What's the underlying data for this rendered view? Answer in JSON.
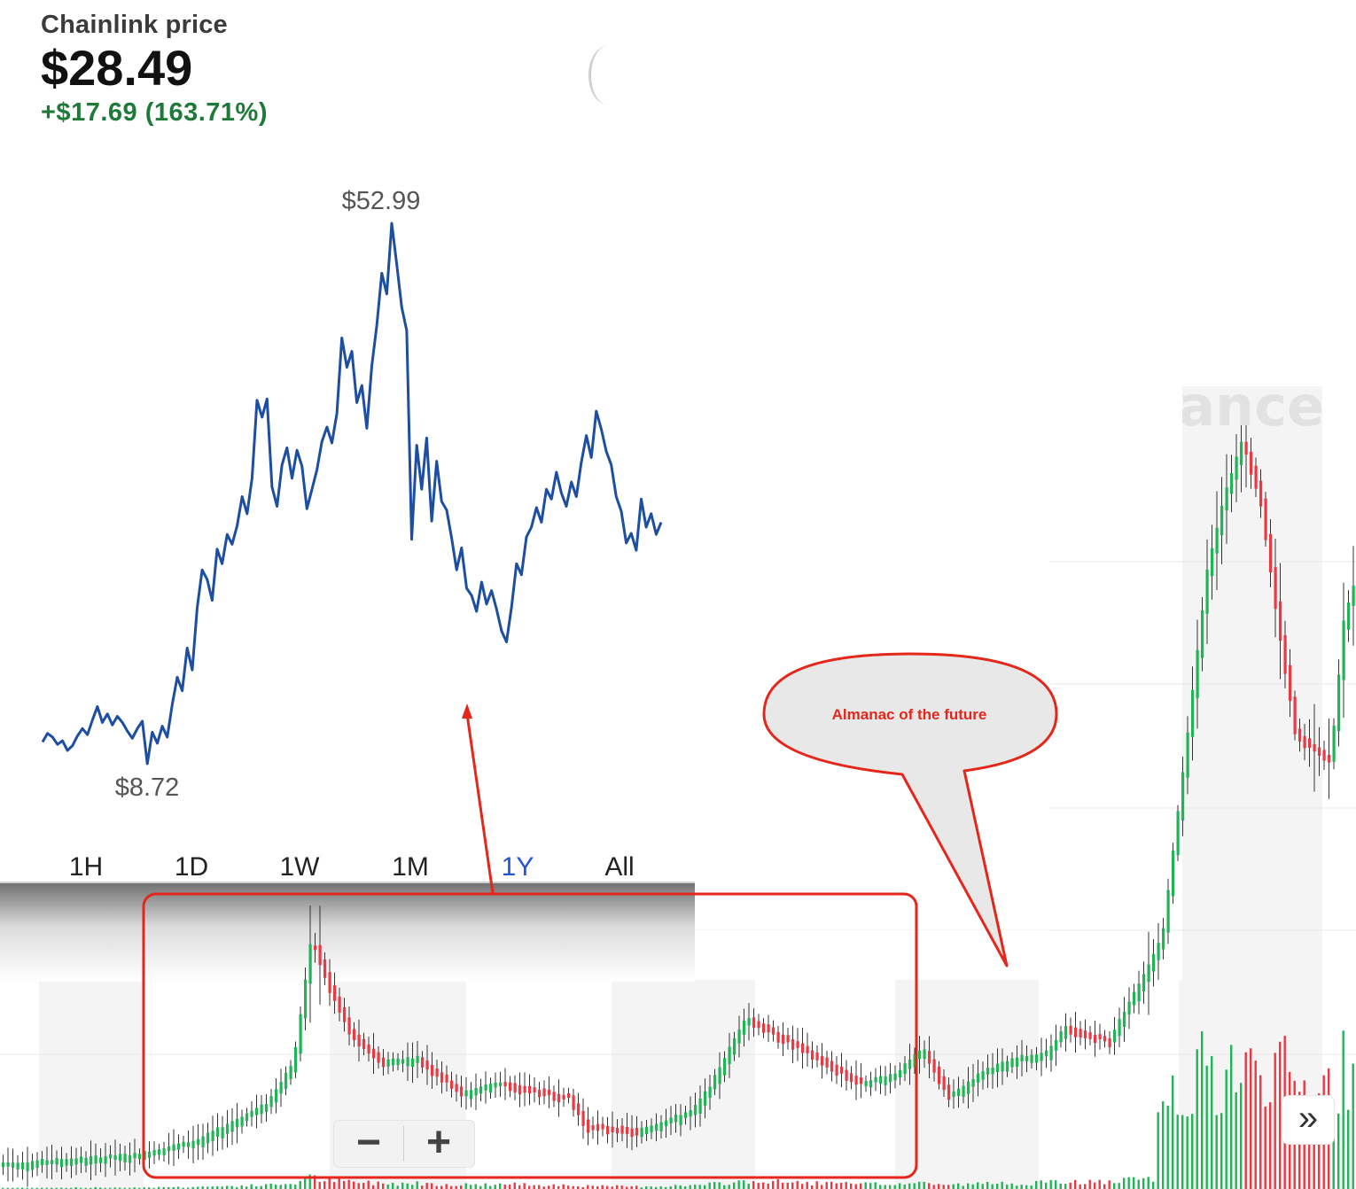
{
  "header": {
    "title": "Chainlink price",
    "price": "$28.49",
    "change": "+$17.69 (163.71%)"
  },
  "range_tabs": [
    "1H",
    "1D",
    "1W",
    "1M",
    "1Y",
    "All"
  ],
  "active_range": "1Y",
  "watermark": "ance",
  "zoom": {
    "minus": "−",
    "plus": "+"
  },
  "scroll_button": "»",
  "callout": {
    "text": "Almanac of the future"
  },
  "colors": {
    "line": "#1d4ea1",
    "up": "#21b457",
    "down": "#ea3943",
    "annotation": "#e5261b",
    "price_change": "#1f7a3a"
  },
  "chart_data": [
    {
      "type": "line",
      "title": "",
      "high_label": "$52.99",
      "low_label": "$8.72",
      "series": [
        {
          "values": [
            10.5,
            11.2,
            10.9,
            10.3,
            10.6,
            9.8,
            10.2,
            11.0,
            11.6,
            11.1,
            12.3,
            13.4,
            12.1,
            12.8,
            11.9,
            12.6,
            12.1,
            11.4,
            10.8,
            11.6,
            12.2,
            8.72,
            11.3,
            10.4,
            11.8,
            10.9,
            13.6,
            15.8,
            14.7,
            18.2,
            16.4,
            21.5,
            24.6,
            23.8,
            22.1,
            26.3,
            25.1,
            27.5,
            26.7,
            28.2,
            30.6,
            29.2,
            32.1,
            38.5,
            37.1,
            38.6,
            31.4,
            29.8,
            33.2,
            34.6,
            32.1,
            34.4,
            33.1,
            29.6,
            31.2,
            32.8,
            35.1,
            36.3,
            35.0,
            37.4,
            43.6,
            41.2,
            42.5,
            38.3,
            39.7,
            36.2,
            41.3,
            44.6,
            48.9,
            47.2,
            52.99,
            49.6,
            46.1,
            44.2,
            27.1,
            34.8,
            31.2,
            35.4,
            28.6,
            33.5,
            30.2,
            29.5,
            27.2,
            24.6,
            26.4,
            23.1,
            22.5,
            21.2,
            23.6,
            21.8,
            22.9,
            21.4,
            19.6,
            18.7,
            21.5,
            25.1,
            24.2,
            27.3,
            28.1,
            29.7,
            28.5,
            31.2,
            30.4,
            32.6,
            30.9,
            29.8,
            31.8,
            30.6,
            33.4,
            35.6,
            33.8,
            37.6,
            36.1,
            34.3,
            33.2,
            30.6,
            29.4,
            26.8,
            27.6,
            26.2,
            30.4,
            28.1,
            29.2,
            27.5,
            28.49
          ]
        }
      ]
    },
    {
      "type": "candlestick",
      "title": "",
      "watermark": "ance"
    }
  ]
}
